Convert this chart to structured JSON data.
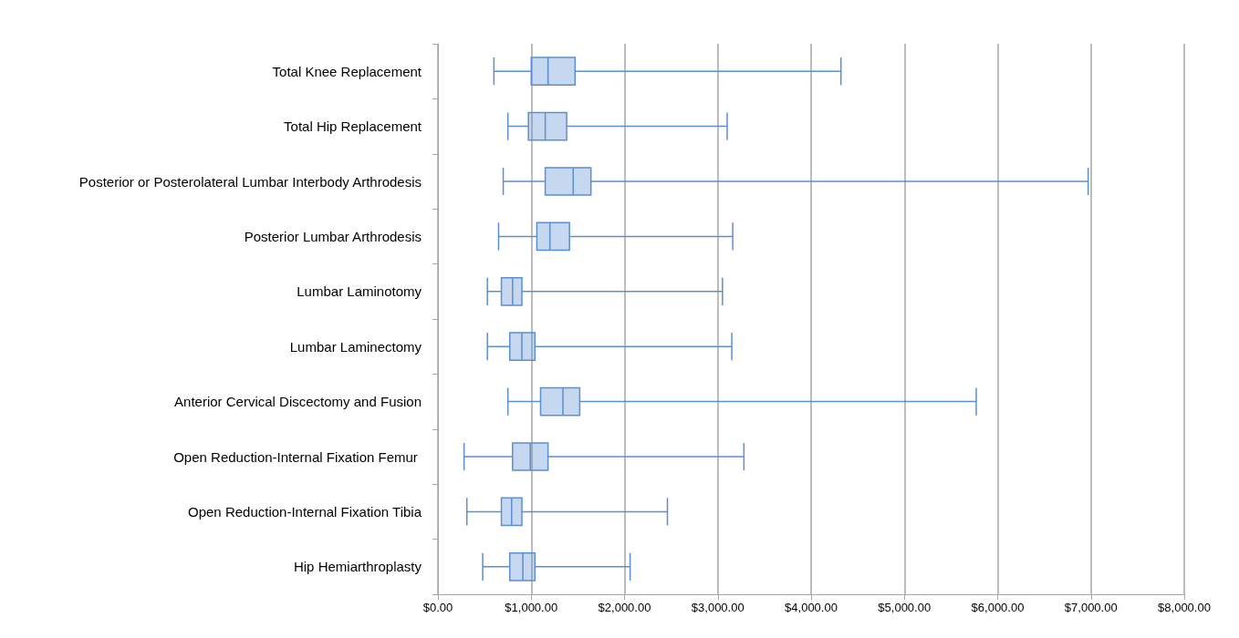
{
  "chart_data": {
    "type": "box",
    "orientation": "horizontal",
    "categories": [
      "Total Knee Replacement",
      "Total Hip Replacement",
      "Posterior or Posterolateral Lumbar Interbody Arthrodesis",
      "Posterior Lumbar Arthrodesis",
      "Lumbar Laminotomy",
      "Lumbar Laminectomy",
      "Anterior Cervical Discectomy and Fusion",
      "Open Reduction-Internal Fixation Femur ",
      "Open Reduction-Internal Fixation Tibia",
      "Hip Hemiarthroplasty"
    ],
    "series": [
      {
        "color": "#5b8fd0",
        "boxes": [
          {
            "low": 600,
            "q1": 1000,
            "median": 1180,
            "q3": 1470,
            "high": 4320
          },
          {
            "low": 750,
            "q1": 970,
            "median": 1150,
            "q3": 1380,
            "high": 3100
          },
          {
            "low": 700,
            "q1": 1150,
            "median": 1450,
            "q3": 1640,
            "high": 6970
          },
          {
            "low": 650,
            "q1": 1060,
            "median": 1200,
            "q3": 1410,
            "high": 3160
          },
          {
            "low": 530,
            "q1": 680,
            "median": 800,
            "q3": 900,
            "high": 3050
          },
          {
            "low": 530,
            "q1": 770,
            "median": 900,
            "q3": 1040,
            "high": 3150
          },
          {
            "low": 750,
            "q1": 1100,
            "median": 1340,
            "q3": 1520,
            "high": 5770
          },
          {
            "low": 280,
            "q1": 800,
            "median": 990,
            "q3": 1180,
            "high": 3280
          },
          {
            "low": 310,
            "q1": 680,
            "median": 790,
            "q3": 900,
            "high": 2460
          },
          {
            "low": 480,
            "q1": 770,
            "median": 910,
            "q3": 1040,
            "high": 2060
          }
        ]
      }
    ],
    "xlim": [
      0,
      8000
    ],
    "xticks": [
      {
        "value": 0,
        "label": "$0.00"
      },
      {
        "value": 1000,
        "label": "$1,000.00"
      },
      {
        "value": 2000,
        "label": "$2,000.00"
      },
      {
        "value": 3000,
        "label": "$3,000.00"
      },
      {
        "value": 4000,
        "label": "$4,000.00"
      },
      {
        "value": 5000,
        "label": "$5,000.00"
      },
      {
        "value": 6000,
        "label": "$6,000.00"
      },
      {
        "value": 7000,
        "label": "$7,000.00"
      },
      {
        "value": 8000,
        "label": "$8,000.00"
      }
    ],
    "grid": "x",
    "legend": false
  }
}
